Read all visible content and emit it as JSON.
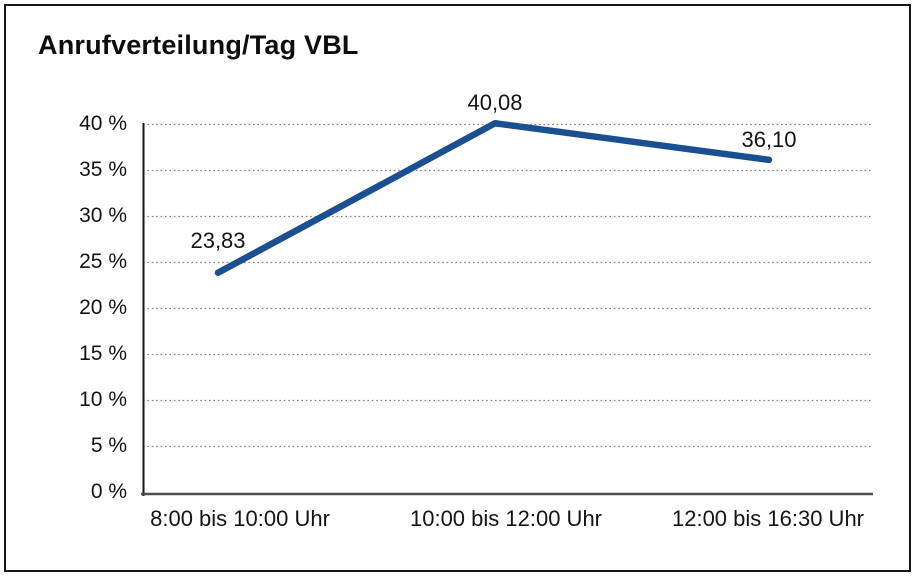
{
  "page": {
    "title": "Anrufverteilung/Tag VBL"
  },
  "chart_data": {
    "type": "line",
    "title": "Anrufverteilung/Tag VBL",
    "categories": [
      "8:00 bis 10:00 Uhr",
      "10:00 bis 12:00 Uhr",
      "12:00 bis 16:30 Uhr"
    ],
    "series": [
      {
        "name": "Anrufverteilung/Tag VBL",
        "values": [
          23.83,
          40.08,
          36.1
        ],
        "point_labels": [
          "23,83",
          "40,08",
          "36,10"
        ],
        "color": "#1a5091"
      }
    ],
    "xlabel": "",
    "ylabel": "",
    "ylim": [
      0,
      40
    ],
    "yticks": [
      0,
      5,
      10,
      15,
      20,
      25,
      30,
      35,
      40
    ],
    "ytick_suffix": " %",
    "grid": "horizontal-dotted",
    "legend_position": "none",
    "colors": {
      "line": "#1a5091",
      "gridline": "#808080",
      "axis_left": "#161616",
      "axis_bottom": "#4f4f4f",
      "text": "#141414"
    }
  }
}
